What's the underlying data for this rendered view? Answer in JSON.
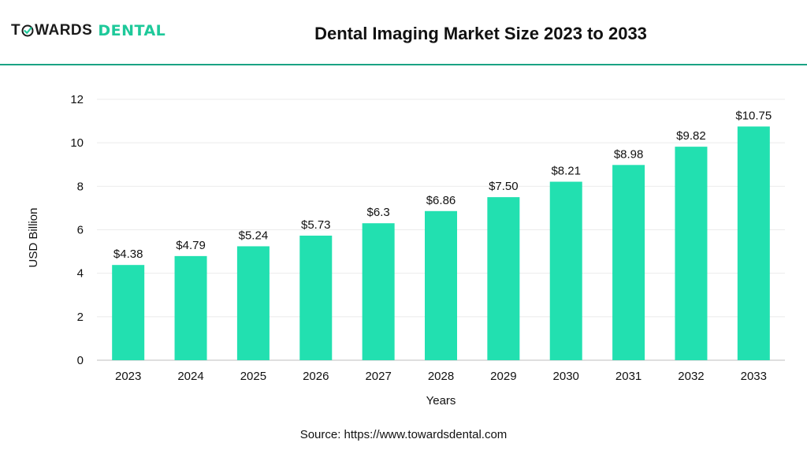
{
  "brand": {
    "part1": "T",
    "part1b": "WARDS",
    "part2": "DENTAL",
    "accent": "#1ec99a",
    "rule_color": "#1aa384"
  },
  "header": {
    "title": "Dental Imaging Market Size 2023 to 2033"
  },
  "chart_data": {
    "type": "bar",
    "categories": [
      "2023",
      "2024",
      "2025",
      "2026",
      "2027",
      "2028",
      "2029",
      "2030",
      "2031",
      "2032",
      "2033"
    ],
    "values": [
      4.38,
      4.79,
      5.24,
      5.73,
      6.3,
      6.86,
      7.5,
      8.21,
      8.98,
      9.82,
      10.75
    ],
    "data_labels": [
      "$4.38",
      "$4.79",
      "$5.24",
      "$5.73",
      "$6.3",
      "$6.86",
      "$7.50",
      "$8.21",
      "$8.98",
      "$9.82",
      "$10.75"
    ],
    "ylim": [
      0,
      12
    ],
    "yticks": [
      "0",
      "2",
      "4",
      "6",
      "8",
      "10",
      "12"
    ],
    "xlabel": "Years",
    "ylabel": "USD Billion",
    "bar_color": "#22e0b0",
    "grid": true
  },
  "footer": {
    "source": "Source: https://www.towardsdental.com"
  }
}
